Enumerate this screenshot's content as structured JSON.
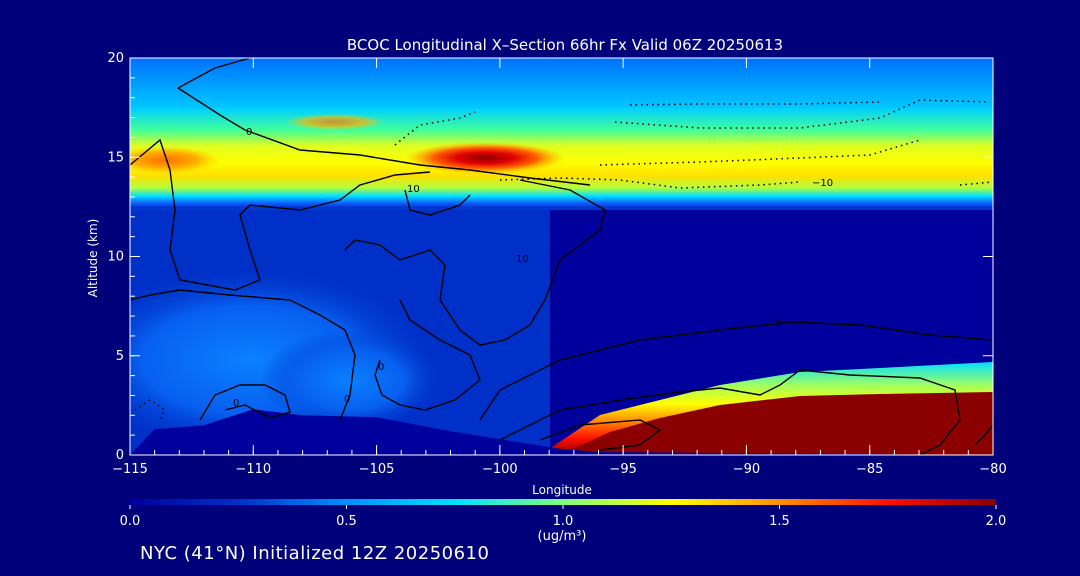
{
  "chart_data": {
    "type": "heatmap",
    "title": "BCOC Longitudinal X–Section 66hr  Fx Valid 06Z 20250613",
    "xlabel": "Longitude",
    "ylabel": "Altitude (km)",
    "xlim": [
      -115,
      -80
    ],
    "ylim": [
      0,
      20
    ],
    "x_ticks": [
      -115,
      -110,
      -105,
      -100,
      -95,
      -90,
      -85,
      -80
    ],
    "x_tick_labels": [
      "−115",
      "−110",
      "−105",
      "−100",
      "−95",
      "−90",
      "−85",
      "−80"
    ],
    "y_ticks": [
      0,
      5,
      10,
      15,
      20
    ],
    "y_tick_labels": [
      "0",
      "5",
      "10",
      "15",
      "20"
    ],
    "colorbar": {
      "min": 0.0,
      "max": 2.0,
      "ticks": [
        0.0,
        0.5,
        1.0,
        1.5,
        2.0
      ],
      "tick_labels": [
        "0.0",
        "0.5",
        "1.0",
        "1.5",
        "2.0"
      ],
      "unit_label": "(ug/m³)",
      "colors": [
        "#00009c",
        "#0030c8",
        "#0090ff",
        "#00e0ff",
        "#80ff80",
        "#ffff00",
        "#ff9000",
        "#ff1000",
        "#8b0000"
      ]
    },
    "contour_labels": [
      "0",
      "0",
      "0",
      "0",
      "0",
      "10",
      "10",
      "−10"
    ],
    "surface_profile": [
      {
        "lon": -115.0,
        "alt": 0.0
      },
      {
        "lon": -114.0,
        "alt": 1.3
      },
      {
        "lon": -112.0,
        "alt": 1.5
      },
      {
        "lon": -110.0,
        "alt": 2.3
      },
      {
        "lon": -108.0,
        "alt": 2.0
      },
      {
        "lon": -105.0,
        "alt": 1.9
      },
      {
        "lon": -102.0,
        "alt": 1.2
      },
      {
        "lon": -99.0,
        "alt": 0.6
      },
      {
        "lon": -97.5,
        "alt": 0.3
      },
      {
        "lon": -96.0,
        "alt": 0.15
      },
      {
        "lon": -80.0,
        "alt": 0.0
      }
    ],
    "high_band": {
      "alt_center": 15.0,
      "alt_range": [
        13.3,
        17.5
      ],
      "peak_lon": -100.0,
      "peak_value": 1.9
    },
    "boundary_layer": {
      "lon_range": [
        -96,
        -80
      ],
      "top_alt": [
        1.0,
        3.2
      ],
      "value": 2.0
    },
    "grid": false
  },
  "footer": {
    "text": "NYC (41°N) Initialized 12Z 20250610"
  }
}
